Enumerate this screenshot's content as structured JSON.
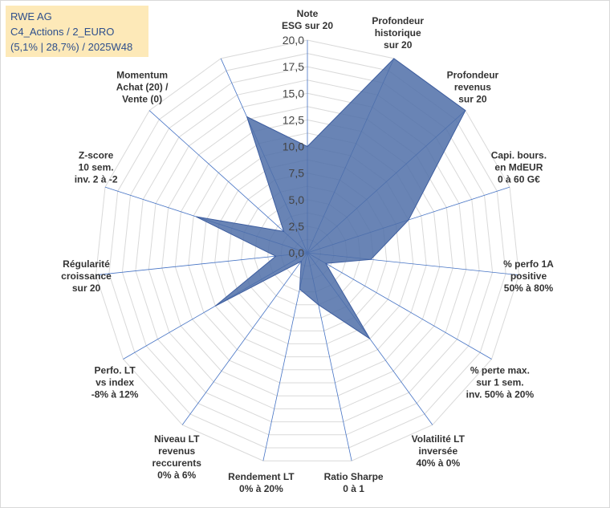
{
  "chart_data": {
    "type": "radar",
    "title_lines": [
      "RWE AG",
      "C4_Actions / 2_EURO",
      "(5,1% | 28,7%) / 2025W48"
    ],
    "rmax": 20,
    "tick_values": [
      0,
      2.5,
      5,
      7.5,
      10,
      12.5,
      15,
      17.5,
      20
    ],
    "tick_labels": [
      "0,0",
      "2,5",
      "5,0",
      "7,5",
      "10,0",
      "12,5",
      "15,0",
      "17,5",
      "20,0"
    ],
    "axes": [
      {
        "label": [
          "Note",
          "ESG sur 20"
        ],
        "value": 10.0
      },
      {
        "label": [
          "Profondeur",
          "historique",
          "sur 20"
        ],
        "value": 20.0
      },
      {
        "label": [
          "Profondeur",
          "revenus",
          "sur 20"
        ],
        "value": 20.0
      },
      {
        "label": [
          "Capi. bours.",
          "en MdEUR",
          "0 à 60 G€"
        ],
        "value": 10.0
      },
      {
        "label": [
          "% perfo 1A",
          "positive",
          "50% à 80%"
        ],
        "value": 6.0
      },
      {
        "label": [
          "% perte max.",
          "sur 1 sem.",
          "inv. 50% à 20%"
        ],
        "value": 2.0
      },
      {
        "label": [
          "Volatilité LT",
          "inversée",
          "40% à 0%"
        ],
        "value": 10.0
      },
      {
        "label": [
          "Ratio Sharpe",
          "0 à 1"
        ],
        "value": 5.0
      },
      {
        "label": [
          "Rendement LT",
          "0% à 20%"
        ],
        "value": 3.5
      },
      {
        "label": [
          "Niveau LT",
          "revenus",
          "reccurents",
          "0% à 6%"
        ],
        "value": 1.0
      },
      {
        "label": [
          "Perfo. LT",
          "vs index",
          "-8% à 12%"
        ],
        "value": 10.0
      },
      {
        "label": [
          "Régularité",
          "croissance",
          "sur 20"
        ],
        "value": 3.0
      },
      {
        "label": [
          "Z-score",
          "10 sem.",
          "inv. 2 à -2"
        ],
        "value": 11.0
      },
      {
        "label": [
          "Momentum",
          "Achat (20) /",
          "Vente (0)"
        ],
        "value": 3.0
      },
      {
        "label": [],
        "value": 14.0
      }
    ],
    "colors": {
      "fill": "#4f6ea8",
      "stroke": "#3d5d9f",
      "spokes": "#4472c4",
      "grid": "#d9d9d9",
      "title_bg": "#fde9b8",
      "title_text": "#2e4f8c"
    }
  }
}
